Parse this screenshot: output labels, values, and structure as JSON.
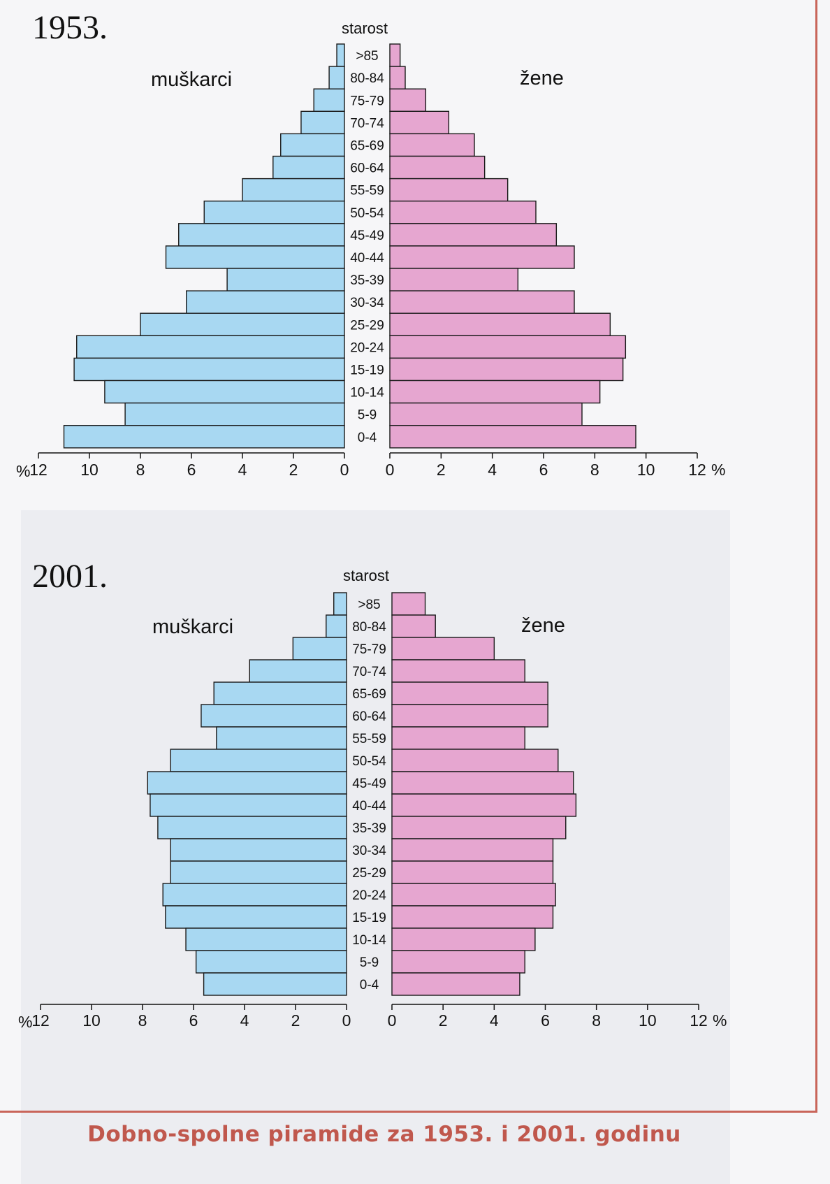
{
  "caption": "Dobno-spolne piramide za 1953. i 2001. godinu",
  "chart_data": [
    {
      "type": "bar",
      "orientation": "horizontal-pyramid",
      "title": "1953.",
      "category_label": "starost",
      "categories": [
        ">85",
        "80-84",
        "75-79",
        "70-74",
        "65-69",
        "60-64",
        "55-59",
        "50-54",
        "45-49",
        "40-44",
        "35-39",
        "30-34",
        "25-29",
        "20-24",
        "15-19",
        "10-14",
        "5-9",
        "0-4"
      ],
      "axis_unit": "%",
      "xlim_left": [
        12,
        0
      ],
      "xlim_right": [
        0,
        12
      ],
      "tick_values": [
        0,
        2,
        4,
        6,
        8,
        10,
        12
      ],
      "colors": {
        "male": "#a8d8f2",
        "female": "#e6a6d0"
      },
      "series": [
        {
          "name": "muškarci",
          "side": "left",
          "values": [
            0.3,
            0.6,
            1.2,
            1.7,
            2.5,
            2.8,
            4.0,
            5.5,
            6.5,
            7.0,
            4.6,
            6.2,
            8.0,
            10.5,
            10.6,
            9.4,
            8.6,
            11.0
          ]
        },
        {
          "name": "žene",
          "side": "right",
          "values": [
            0.4,
            0.6,
            1.4,
            2.3,
            3.3,
            3.7,
            4.6,
            5.7,
            6.5,
            7.2,
            5.0,
            7.2,
            8.6,
            9.2,
            9.1,
            8.2,
            7.5,
            9.6
          ]
        }
      ]
    },
    {
      "type": "bar",
      "orientation": "horizontal-pyramid",
      "title": "2001.",
      "category_label": "starost",
      "categories": [
        ">85",
        "80-84",
        "75-79",
        "70-74",
        "65-69",
        "60-64",
        "55-59",
        "50-54",
        "45-49",
        "40-44",
        "35-39",
        "30-34",
        "25-29",
        "20-24",
        "15-19",
        "10-14",
        "5-9",
        "0-4"
      ],
      "axis_unit": "%",
      "xlim_left": [
        12,
        0
      ],
      "xlim_right": [
        0,
        12
      ],
      "tick_values": [
        0,
        2,
        4,
        6,
        8,
        10,
        12
      ],
      "colors": {
        "male": "#a8d8f2",
        "female": "#e6a6d0"
      },
      "series": [
        {
          "name": "muškarci",
          "side": "left",
          "values": [
            0.5,
            0.8,
            2.1,
            3.8,
            5.2,
            5.7,
            5.1,
            6.9,
            7.8,
            7.7,
            7.4,
            6.9,
            6.9,
            7.2,
            7.1,
            6.3,
            5.9,
            5.6
          ]
        },
        {
          "name": "žene",
          "side": "right",
          "values": [
            1.3,
            1.7,
            4.0,
            5.2,
            6.1,
            6.1,
            5.2,
            6.5,
            7.1,
            7.2,
            6.8,
            6.3,
            6.3,
            6.4,
            6.3,
            5.6,
            5.2,
            5.0
          ]
        }
      ]
    }
  ]
}
